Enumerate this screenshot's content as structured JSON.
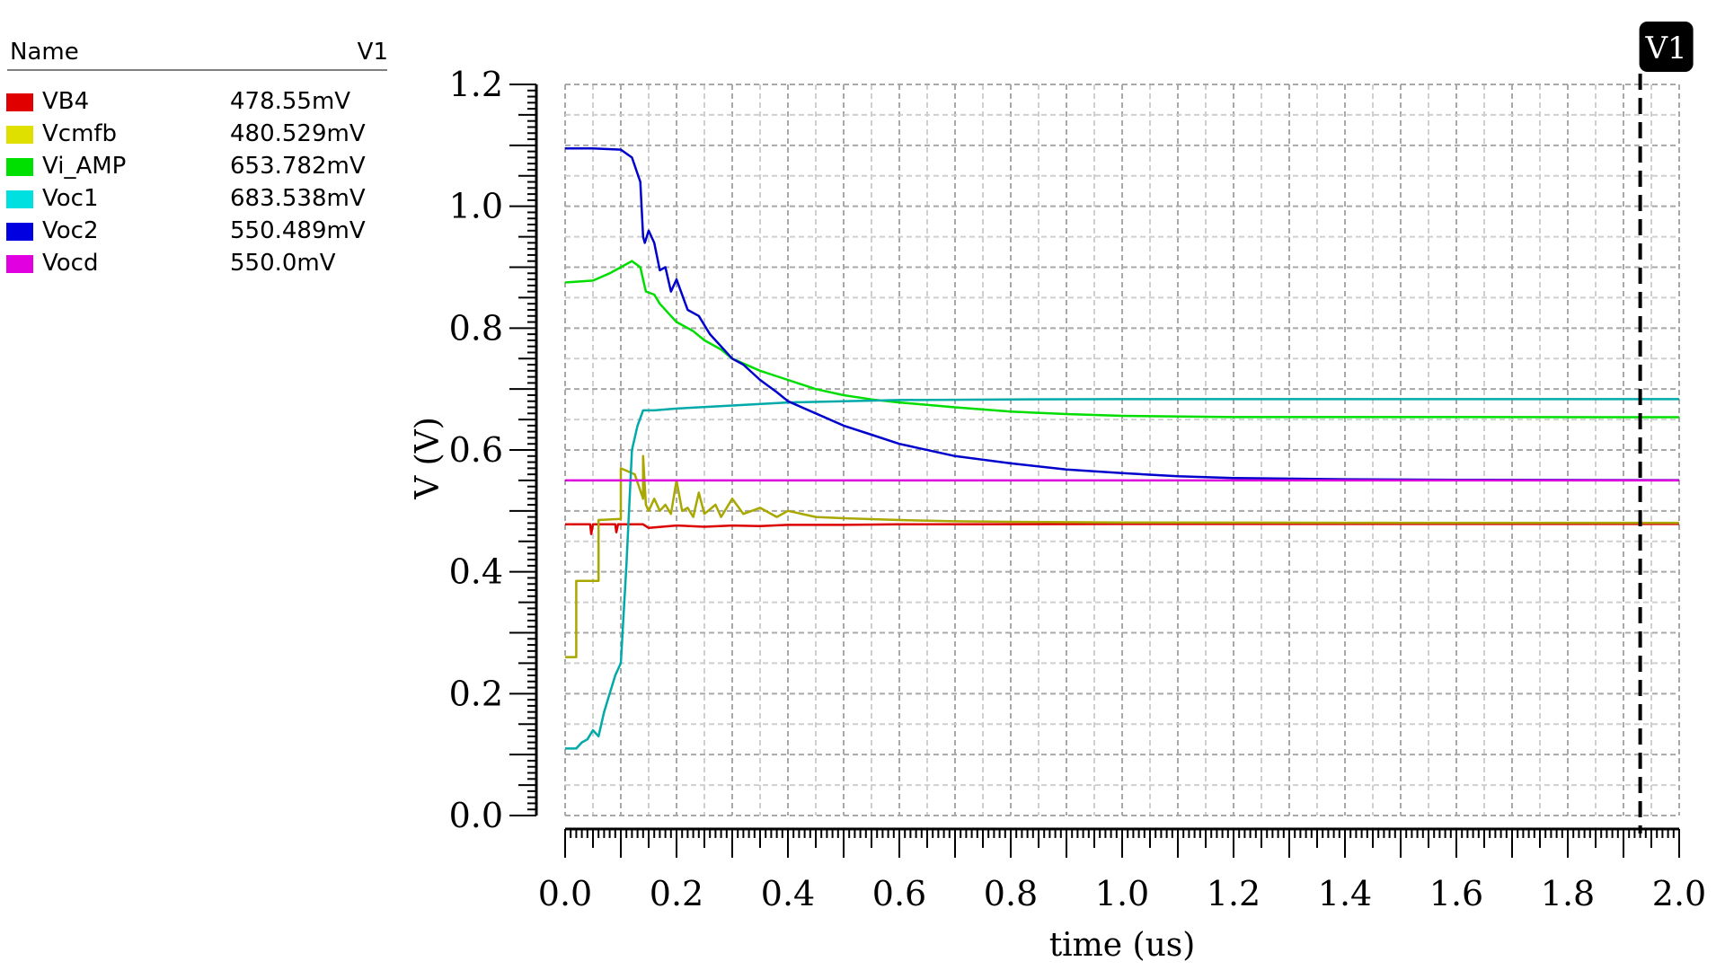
{
  "legend": {
    "header_name": "Name",
    "header_value": "V1",
    "rows": [
      {
        "name": "VB4",
        "value": "478.55mV",
        "color": "#e00000"
      },
      {
        "name": "Vcmfb",
        "value": "480.529mV",
        "color": "#e0e000"
      },
      {
        "name": "Vi_AMP",
        "value": "653.782mV",
        "color": "#00e000"
      },
      {
        "name": "Voc1",
        "value": "683.538mV",
        "color": "#00e0e0"
      },
      {
        "name": "Voc2",
        "value": "550.489mV",
        "color": "#0000e0"
      },
      {
        "name": "Vocd",
        "value": "550.0mV",
        "color": "#e000e0"
      }
    ]
  },
  "cursor": {
    "label": "V1",
    "time_us": 1.93
  },
  "chart_data": {
    "type": "line",
    "title": "",
    "xlabel": "time (us)",
    "ylabel": "V (V)",
    "xlim": [
      0.0,
      2.0
    ],
    "ylim": [
      0.0,
      1.2
    ],
    "xticks": [
      "0.0",
      "0.2",
      "0.4",
      "0.6",
      "0.8",
      "1.0",
      "1.2",
      "1.4",
      "1.6",
      "1.8",
      "2.0"
    ],
    "yticks": [
      "0.0",
      "0.2",
      "0.4",
      "0.6",
      "0.8",
      "1.0",
      "1.2"
    ],
    "grid": true,
    "legend_position": "left-panel",
    "series": [
      {
        "name": "VB4",
        "color": "#dd0000",
        "x": [
          0.0,
          0.045,
          0.047,
          0.05,
          0.09,
          0.092,
          0.095,
          0.14,
          0.15,
          0.2,
          0.25,
          0.3,
          0.35,
          0.4,
          0.5,
          0.6,
          1.0,
          1.5,
          2.0
        ],
        "y": [
          0.478,
          0.478,
          0.462,
          0.478,
          0.478,
          0.465,
          0.478,
          0.478,
          0.472,
          0.476,
          0.474,
          0.476,
          0.475,
          0.477,
          0.477,
          0.478,
          0.4785,
          0.4785,
          0.4785
        ]
      },
      {
        "name": "Vcmfb",
        "color": "#a8a800",
        "x": [
          0.0,
          0.02,
          0.02,
          0.06,
          0.06,
          0.1,
          0.1,
          0.125,
          0.14,
          0.14,
          0.145,
          0.15,
          0.16,
          0.17,
          0.18,
          0.19,
          0.2,
          0.21,
          0.22,
          0.23,
          0.24,
          0.25,
          0.27,
          0.28,
          0.3,
          0.32,
          0.35,
          0.38,
          0.4,
          0.45,
          0.5,
          0.6,
          0.7,
          0.8,
          1.0,
          1.2,
          1.5,
          2.0
        ],
        "y": [
          0.26,
          0.26,
          0.385,
          0.385,
          0.485,
          0.487,
          0.57,
          0.56,
          0.52,
          0.59,
          0.51,
          0.5,
          0.52,
          0.5,
          0.51,
          0.495,
          0.55,
          0.5,
          0.505,
          0.49,
          0.53,
          0.495,
          0.51,
          0.49,
          0.52,
          0.495,
          0.505,
          0.49,
          0.5,
          0.49,
          0.488,
          0.485,
          0.483,
          0.482,
          0.481,
          0.4808,
          0.4805,
          0.4805
        ]
      },
      {
        "name": "Vi_AMP",
        "color": "#00dd00",
        "x": [
          0.0,
          0.05,
          0.08,
          0.1,
          0.12,
          0.135,
          0.14,
          0.145,
          0.16,
          0.17,
          0.19,
          0.2,
          0.23,
          0.25,
          0.28,
          0.3,
          0.35,
          0.4,
          0.45,
          0.5,
          0.55,
          0.6,
          0.7,
          0.8,
          0.9,
          1.0,
          1.2,
          1.5,
          2.0
        ],
        "y": [
          0.875,
          0.878,
          0.89,
          0.9,
          0.91,
          0.9,
          0.88,
          0.86,
          0.855,
          0.84,
          0.82,
          0.81,
          0.795,
          0.78,
          0.765,
          0.75,
          0.73,
          0.715,
          0.7,
          0.69,
          0.683,
          0.678,
          0.67,
          0.663,
          0.659,
          0.656,
          0.654,
          0.654,
          0.6538
        ]
      },
      {
        "name": "Voc1",
        "color": "#00aaaa",
        "x": [
          0.0,
          0.02,
          0.03,
          0.04,
          0.05,
          0.06,
          0.07,
          0.08,
          0.09,
          0.1,
          0.11,
          0.12,
          0.13,
          0.14,
          0.16,
          0.2,
          0.3,
          0.4,
          0.5,
          0.6,
          0.8,
          1.0,
          1.5,
          2.0
        ],
        "y": [
          0.11,
          0.11,
          0.12,
          0.125,
          0.14,
          0.13,
          0.17,
          0.2,
          0.23,
          0.25,
          0.41,
          0.6,
          0.64,
          0.665,
          0.665,
          0.668,
          0.673,
          0.678,
          0.68,
          0.682,
          0.683,
          0.6835,
          0.6835,
          0.6835
        ]
      },
      {
        "name": "Voc2",
        "color": "#0000cc",
        "x": [
          0.0,
          0.05,
          0.1,
          0.12,
          0.135,
          0.14,
          0.143,
          0.15,
          0.16,
          0.17,
          0.18,
          0.19,
          0.2,
          0.22,
          0.24,
          0.26,
          0.28,
          0.3,
          0.32,
          0.35,
          0.38,
          0.4,
          0.45,
          0.5,
          0.55,
          0.6,
          0.7,
          0.8,
          0.9,
          1.0,
          1.1,
          1.2,
          1.4,
          1.6,
          2.0
        ],
        "y": [
          1.095,
          1.095,
          1.093,
          1.08,
          1.04,
          0.95,
          0.94,
          0.96,
          0.94,
          0.895,
          0.9,
          0.86,
          0.88,
          0.83,
          0.82,
          0.79,
          0.77,
          0.75,
          0.74,
          0.715,
          0.695,
          0.68,
          0.66,
          0.64,
          0.625,
          0.61,
          0.59,
          0.578,
          0.568,
          0.562,
          0.557,
          0.554,
          0.552,
          0.551,
          0.5505
        ]
      },
      {
        "name": "Vocd",
        "color": "#dd00dd",
        "x": [
          0.0,
          2.0
        ],
        "y": [
          0.55,
          0.55
        ]
      }
    ]
  }
}
